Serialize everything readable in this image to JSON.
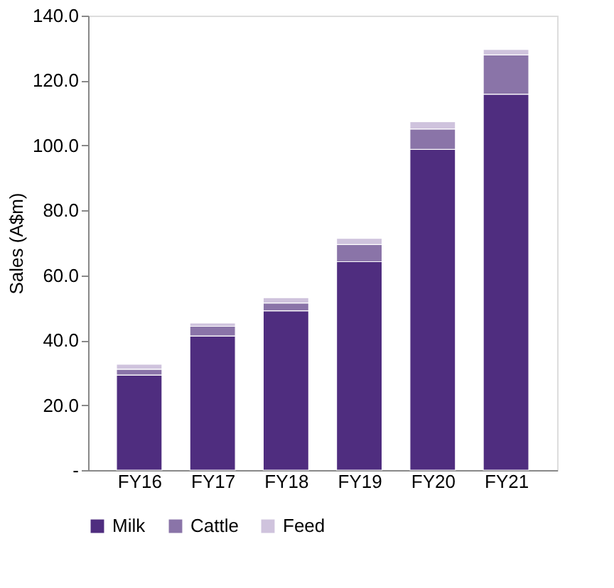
{
  "chart_data": {
    "type": "bar",
    "stacked": true,
    "ylabel": "Sales (A$m)",
    "categories": [
      "FY16",
      "FY17",
      "FY18",
      "FY19",
      "FY20",
      "FY21"
    ],
    "series": [
      {
        "name": "Milk",
        "color": "#4f2d7f",
        "values": [
          29.3,
          41.3,
          49.1,
          64.2,
          98.8,
          115.8
        ]
      },
      {
        "name": "Cattle",
        "color": "#8a74a8",
        "values": [
          1.8,
          3.0,
          2.4,
          5.3,
          6.3,
          12.1
        ]
      },
      {
        "name": "Feed",
        "color": "#cfc3dd",
        "values": [
          1.5,
          1.0,
          1.6,
          1.9,
          2.2,
          1.7
        ]
      }
    ],
    "ylim": [
      0,
      140
    ],
    "yticks": [
      {
        "value": 0,
        "label": "-"
      },
      {
        "value": 20,
        "label": "20.0"
      },
      {
        "value": 40,
        "label": "40.0"
      },
      {
        "value": 60,
        "label": "60.0"
      },
      {
        "value": 80,
        "label": "80.0"
      },
      {
        "value": 100,
        "label": "100.0"
      },
      {
        "value": 120,
        "label": "120.0"
      },
      {
        "value": 140,
        "label": "140.0"
      }
    ],
    "grid": false,
    "legend": "bottom"
  }
}
